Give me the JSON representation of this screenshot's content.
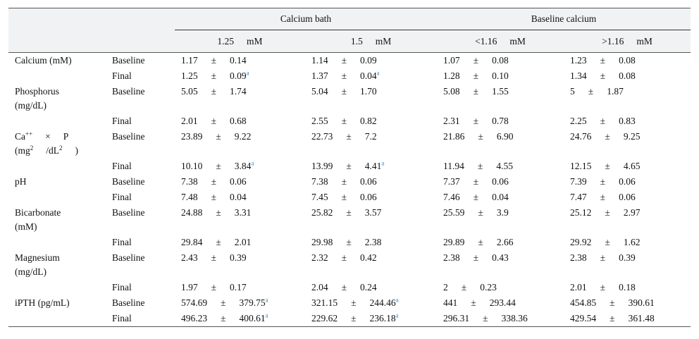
{
  "table": {
    "group_headers": [
      "Calcium bath",
      "Baseline calcium"
    ],
    "sub_headers": [
      {
        "value": "1.25",
        "unit": "mM"
      },
      {
        "value": "1.5",
        "unit": "mM"
      },
      {
        "value": "<1.16",
        "unit": "mM"
      },
      {
        "value": ">1.16",
        "unit": "mM"
      }
    ],
    "pm": "±",
    "rows": [
      {
        "param": [
          [
            "Calcium (mM)"
          ]
        ],
        "time": "Baseline",
        "cells": [
          [
            "1.17",
            "0.14"
          ],
          [
            "1.14",
            "0.09"
          ],
          [
            "1.07",
            "0.08"
          ],
          [
            "1.23",
            "0.08"
          ]
        ]
      },
      {
        "time": "Final",
        "cells": [
          [
            "1.25",
            "0.09",
            "a"
          ],
          [
            "1.37",
            "0.04",
            "a"
          ],
          [
            "1.28",
            "0.10"
          ],
          [
            "1.34",
            "0.08"
          ]
        ]
      },
      {
        "param": [
          [
            "Phosphorus"
          ],
          [
            "(mg/dL)"
          ]
        ],
        "time": "Baseline",
        "cells": [
          [
            "5.05",
            "1.74"
          ],
          [
            "5.04",
            "1.70"
          ],
          [
            "5.08",
            "1.55"
          ],
          [
            "5",
            "1.87"
          ]
        ]
      },
      {
        "time": "Final",
        "cells": [
          [
            "2.01",
            "0.68"
          ],
          [
            "2.55",
            "0.82"
          ],
          [
            "2.31",
            "0.78"
          ],
          [
            "2.25",
            "0.83"
          ]
        ]
      },
      {
        "param": [
          [
            "Ca",
            {
              "sup": "++"
            },
            "×",
            "P"
          ],
          [
            "(mg",
            {
              "sup": "2"
            },
            "/dL",
            {
              "sup": "2"
            },
            ")"
          ]
        ],
        "time": "Baseline",
        "cells": [
          [
            "23.89",
            "9.22"
          ],
          [
            "22.73",
            "7.2"
          ],
          [
            "21.86",
            "6.90"
          ],
          [
            "24.76",
            "9.25"
          ]
        ]
      },
      {
        "time": "Final",
        "cells": [
          [
            "10.10",
            "3.84",
            "a"
          ],
          [
            "13.99",
            "4.41",
            "a"
          ],
          [
            "11.94",
            "4.55"
          ],
          [
            "12.15",
            "4.65"
          ]
        ]
      },
      {
        "param": [
          [
            "pH"
          ]
        ],
        "time": "Baseline",
        "cells": [
          [
            "7.38",
            "0.06"
          ],
          [
            "7.38",
            "0.06"
          ],
          [
            "7.37",
            "0.06"
          ],
          [
            "7.39",
            "0.06"
          ]
        ]
      },
      {
        "time": "Final",
        "cells": [
          [
            "7.48",
            "0.04"
          ],
          [
            "7.45",
            "0.06"
          ],
          [
            "7.46",
            "0.04"
          ],
          [
            "7.47",
            "0.06"
          ]
        ]
      },
      {
        "param": [
          [
            "Bicarbonate"
          ],
          [
            "(mM)"
          ]
        ],
        "time": "Baseline",
        "cells": [
          [
            "24.88",
            "3.31"
          ],
          [
            "25.82",
            "3.57"
          ],
          [
            "25.59",
            "3.9"
          ],
          [
            "25.12",
            "2.97"
          ]
        ]
      },
      {
        "time": "Final",
        "cells": [
          [
            "29.84",
            "2.01"
          ],
          [
            "29.98",
            "2.38"
          ],
          [
            "29.89",
            "2.66"
          ],
          [
            "29.92",
            "1.62"
          ]
        ]
      },
      {
        "param": [
          [
            "Magnesium"
          ],
          [
            "(mg/dL)"
          ]
        ],
        "time": "Baseline",
        "cells": [
          [
            "2.43",
            "0.39"
          ],
          [
            "2.32",
            "0.42"
          ],
          [
            "2.38",
            "0.43"
          ],
          [
            "2.38",
            "0.39"
          ]
        ]
      },
      {
        "time": "Final",
        "cells": [
          [
            "1.97",
            "0.17"
          ],
          [
            "2.04",
            "0.24"
          ],
          [
            "2",
            "0.23"
          ],
          [
            "2.01",
            "0.18"
          ]
        ]
      },
      {
        "param": [
          [
            "iPTH (pg/mL)"
          ]
        ],
        "time": "Baseline",
        "cells": [
          [
            "574.69",
            "379.75",
            "a"
          ],
          [
            "321.15",
            "244.46",
            "a"
          ],
          [
            "441",
            "293.44"
          ],
          [
            "454.85",
            "390.61"
          ]
        ]
      },
      {
        "time": "Final",
        "cells": [
          [
            "496.23",
            "400.61",
            "a"
          ],
          [
            "229.62",
            "236.18",
            "a"
          ],
          [
            "296.31",
            "338.36"
          ],
          [
            "429.54",
            "361.48"
          ]
        ]
      }
    ]
  }
}
